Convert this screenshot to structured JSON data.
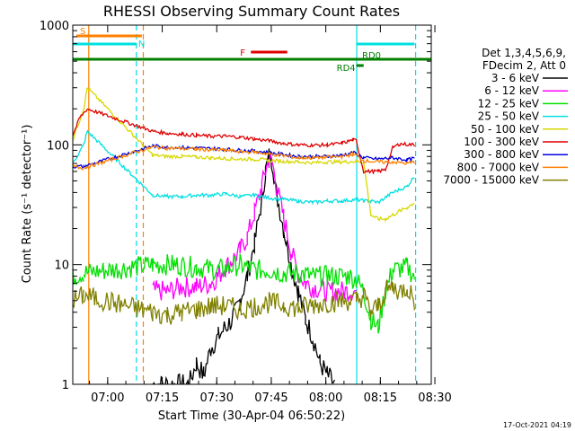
{
  "chart_data": {
    "type": "line",
    "title": "RHESSI Observing Summary Count Rates",
    "xlabel": "Start Time (30-Apr-04 06:50:22)",
    "ylabel": "Count Rate (s⁻¹ detector⁻¹)",
    "y_scale": "log",
    "ylim": [
      1,
      1000
    ],
    "xlim_minutes": [
      0,
      98.6
    ],
    "x_ticks": [
      {
        "label": "07:00",
        "min": 9.6
      },
      {
        "label": "07:15",
        "min": 24.6
      },
      {
        "label": "07:30",
        "min": 39.6
      },
      {
        "label": "07:45",
        "min": 54.6
      },
      {
        "label": "08:00",
        "min": 69.6
      },
      {
        "label": "08:15",
        "min": 84.6
      },
      {
        "label": "08:30",
        "min": 99.6
      }
    ],
    "y_ticks": [
      {
        "label": "1",
        "value": 1
      },
      {
        "label": "10",
        "value": 10
      },
      {
        "label": "100",
        "value": 100
      },
      {
        "label": "1000",
        "value": 1000
      }
    ],
    "legend": {
      "placement": "right",
      "header1": "Det 1,3,4,5,6,9,",
      "header2": "FDecim 2, Att 0",
      "entries": [
        {
          "label": "3 - 6 keV",
          "color": "#000000"
        },
        {
          "label": "6 - 12 keV",
          "color": "#ff00ff"
        },
        {
          "label": "12 - 25 keV",
          "color": "#00e000"
        },
        {
          "label": "25 - 50 keV",
          "color": "#00e0e0"
        },
        {
          "label": "50 - 100 keV",
          "color": "#d8d800"
        },
        {
          "label": "100 - 300 keV",
          "color": "#e00000"
        },
        {
          "label": "300 - 800 keV",
          "color": "#0000e0"
        },
        {
          "label": "800 - 7000 keV",
          "color": "#ff8000"
        },
        {
          "label": "7000 - 15000 keV",
          "color": "#808000"
        }
      ]
    },
    "annotations": [
      {
        "label": "S",
        "color": "#ff8000",
        "x_start_min": 1,
        "x_end_min": 19
      },
      {
        "label": "N",
        "color": "#00e0e0",
        "x_start_min": 0,
        "x_end_min": 17.5
      },
      {
        "label": "F",
        "color": "#e00000",
        "x_start_min": 49,
        "x_end_min": 59
      },
      {
        "label": "RD0",
        "color": "#008000",
        "x_start_min": 0,
        "x_end_min": 98.6
      },
      {
        "label": "RD4",
        "color": "#008000",
        "x_start_min": 78,
        "x_end_min": 80
      },
      {
        "label": "",
        "color": "#00e0e0",
        "x_start_min": 78,
        "x_end_min": 94
      }
    ],
    "verticals": [
      {
        "x_min": 4.4,
        "color": "#ff8000",
        "style": "solid"
      },
      {
        "x_min": 17.5,
        "color": "#00e0e0",
        "style": "dashed"
      },
      {
        "x_min": 19.4,
        "color": "#ff8000",
        "style": "dashed"
      },
      {
        "x_min": 78.1,
        "color": "#00e0e0",
        "style": "solid"
      },
      {
        "x_min": 94.3,
        "color": "#00e0e0",
        "style": "dashed"
      }
    ],
    "series": [
      {
        "name": "3 - 6 keV",
        "color": "#000000",
        "points": [
          [
            22,
            1
          ],
          [
            28,
            1
          ],
          [
            32,
            1
          ],
          [
            34,
            1.5
          ],
          [
            36,
            1.2
          ],
          [
            38,
            2
          ],
          [
            40,
            2.5
          ],
          [
            42,
            3
          ],
          [
            44,
            3.5
          ],
          [
            46,
            5
          ],
          [
            48,
            8
          ],
          [
            50,
            15
          ],
          [
            52,
            35
          ],
          [
            53,
            60
          ],
          [
            54,
            80
          ],
          [
            55,
            70
          ],
          [
            56,
            40
          ],
          [
            58,
            20
          ],
          [
            60,
            10
          ],
          [
            62,
            6
          ],
          [
            64,
            3.5
          ],
          [
            66,
            2.5
          ],
          [
            68,
            1.5
          ],
          [
            70,
            1.2
          ],
          [
            72,
            1
          ]
        ]
      },
      {
        "name": "6 - 12 keV",
        "color": "#ff00ff",
        "points": [
          [
            22,
            6
          ],
          [
            26,
            6
          ],
          [
            30,
            6.5
          ],
          [
            34,
            6.5
          ],
          [
            38,
            7
          ],
          [
            40,
            8
          ],
          [
            42,
            9.5
          ],
          [
            44,
            11
          ],
          [
            46,
            13
          ],
          [
            48,
            17
          ],
          [
            50,
            27
          ],
          [
            52,
            45
          ],
          [
            53,
            60
          ],
          [
            54,
            75
          ],
          [
            55,
            68
          ],
          [
            56,
            45
          ],
          [
            58,
            25
          ],
          [
            60,
            13
          ],
          [
            62,
            8.5
          ],
          [
            64,
            7
          ],
          [
            66,
            6.5
          ],
          [
            70,
            6
          ],
          [
            76,
            6
          ],
          [
            78,
            6
          ]
        ]
      },
      {
        "name": "12 - 25 keV",
        "color": "#00e000",
        "points": [
          [
            0,
            8
          ],
          [
            3,
            8.5
          ],
          [
            22,
            10
          ],
          [
            28,
            10
          ],
          [
            34,
            9.5
          ],
          [
            40,
            9
          ],
          [
            46,
            10
          ],
          [
            50,
            9
          ],
          [
            54,
            9
          ],
          [
            58,
            8.5
          ],
          [
            62,
            8.5
          ],
          [
            66,
            8
          ],
          [
            70,
            8
          ],
          [
            76,
            8
          ],
          [
            78,
            7.5
          ],
          [
            80,
            6
          ],
          [
            82,
            3.5
          ],
          [
            84,
            3
          ],
          [
            86,
            6
          ],
          [
            88,
            9
          ],
          [
            92,
            9.5
          ],
          [
            94,
            8
          ]
        ]
      },
      {
        "name": "25 - 50 keV",
        "color": "#00e0e0",
        "points": [
          [
            0,
            70
          ],
          [
            3,
            100
          ],
          [
            4,
            130
          ],
          [
            22,
            38
          ],
          [
            26,
            37
          ],
          [
            30,
            37
          ],
          [
            34,
            38
          ],
          [
            38,
            38
          ],
          [
            42,
            39
          ],
          [
            46,
            37
          ],
          [
            50,
            38
          ],
          [
            54,
            36
          ],
          [
            58,
            35
          ],
          [
            62,
            34
          ],
          [
            66,
            33
          ],
          [
            70,
            34
          ],
          [
            74,
            34
          ],
          [
            78,
            35
          ],
          [
            80,
            34
          ],
          [
            82,
            34
          ],
          [
            84,
            33
          ],
          [
            88,
            40
          ],
          [
            92,
            45
          ],
          [
            94,
            55
          ]
        ]
      },
      {
        "name": "50 - 100 keV",
        "color": "#d8d800",
        "points": [
          [
            0,
            110
          ],
          [
            3,
            200
          ],
          [
            4,
            300
          ],
          [
            22,
            82
          ],
          [
            26,
            80
          ],
          [
            30,
            80
          ],
          [
            34,
            79
          ],
          [
            38,
            78
          ],
          [
            42,
            77
          ],
          [
            46,
            76
          ],
          [
            50,
            76
          ],
          [
            54,
            74
          ],
          [
            58,
            73
          ],
          [
            62,
            72
          ],
          [
            66,
            71
          ],
          [
            70,
            72
          ],
          [
            74,
            72
          ],
          [
            78,
            73
          ],
          [
            80,
            72
          ],
          [
            82,
            26
          ],
          [
            84,
            24
          ],
          [
            86,
            24
          ],
          [
            88,
            26
          ],
          [
            90,
            28
          ],
          [
            92,
            30
          ],
          [
            94,
            33
          ]
        ]
      },
      {
        "name": "100 - 300 keV",
        "color": "#e00000",
        "points": [
          [
            0,
            120
          ],
          [
            2,
            170
          ],
          [
            4,
            200
          ],
          [
            22,
            130
          ],
          [
            26,
            125
          ],
          [
            30,
            123
          ],
          [
            34,
            120
          ],
          [
            38,
            118
          ],
          [
            42,
            118
          ],
          [
            46,
            116
          ],
          [
            50,
            112
          ],
          [
            54,
            108
          ],
          [
            58,
            103
          ],
          [
            62,
            100
          ],
          [
            66,
            99
          ],
          [
            70,
            100
          ],
          [
            74,
            103
          ],
          [
            77,
            110
          ],
          [
            78,
            108
          ],
          [
            80,
            60
          ],
          [
            84,
            60
          ],
          [
            86,
            62
          ],
          [
            88,
            95
          ],
          [
            90,
            102
          ],
          [
            94,
            100
          ]
        ]
      },
      {
        "name": "300 - 800 keV",
        "color": "#0000e0",
        "points": [
          [
            0,
            66
          ],
          [
            3,
            66
          ],
          [
            22,
            98
          ],
          [
            26,
            96
          ],
          [
            30,
            95
          ],
          [
            34,
            94
          ],
          [
            38,
            93
          ],
          [
            42,
            92
          ],
          [
            46,
            90
          ],
          [
            50,
            89
          ],
          [
            54,
            86
          ],
          [
            58,
            83
          ],
          [
            62,
            80
          ],
          [
            66,
            80
          ],
          [
            70,
            80
          ],
          [
            74,
            82
          ],
          [
            77,
            86
          ],
          [
            78,
            84
          ],
          [
            80,
            78
          ],
          [
            84,
            76
          ],
          [
            88,
            78
          ],
          [
            92,
            75
          ],
          [
            94,
            77
          ]
        ]
      },
      {
        "name": "800 - 7000 keV",
        "color": "#ff8000",
        "points": [
          [
            0,
            66
          ],
          [
            3,
            64
          ],
          [
            22,
            96
          ],
          [
            26,
            94
          ],
          [
            30,
            93
          ],
          [
            34,
            92
          ],
          [
            38,
            91
          ],
          [
            42,
            90
          ],
          [
            46,
            88
          ],
          [
            50,
            87
          ],
          [
            54,
            84
          ],
          [
            58,
            81
          ],
          [
            62,
            78
          ],
          [
            66,
            78
          ],
          [
            70,
            79
          ],
          [
            74,
            80
          ],
          [
            77,
            83
          ],
          [
            78,
            82
          ],
          [
            80,
            74
          ],
          [
            84,
            72
          ],
          [
            88,
            72
          ],
          [
            92,
            70
          ],
          [
            94,
            72
          ]
        ]
      },
      {
        "name": "7000 - 15000 keV",
        "color": "#808000",
        "points": [
          [
            0,
            5
          ],
          [
            3,
            5.5
          ],
          [
            22,
            4
          ],
          [
            26,
            3.8
          ],
          [
            30,
            4
          ],
          [
            34,
            4.2
          ],
          [
            38,
            4.5
          ],
          [
            42,
            4.5
          ],
          [
            46,
            4.2
          ],
          [
            50,
            4.5
          ],
          [
            54,
            4.8
          ],
          [
            58,
            4.6
          ],
          [
            62,
            4.3
          ],
          [
            66,
            4.6
          ],
          [
            70,
            4.8
          ],
          [
            74,
            5
          ],
          [
            78,
            5
          ],
          [
            80,
            5.5
          ],
          [
            82,
            4
          ],
          [
            84,
            4.5
          ],
          [
            86,
            6
          ],
          [
            88,
            6.5
          ],
          [
            90,
            6
          ],
          [
            92,
            6.5
          ],
          [
            94,
            5
          ]
        ]
      }
    ]
  },
  "footer": {
    "timestamp": "17-Oct-2021 04:19"
  }
}
